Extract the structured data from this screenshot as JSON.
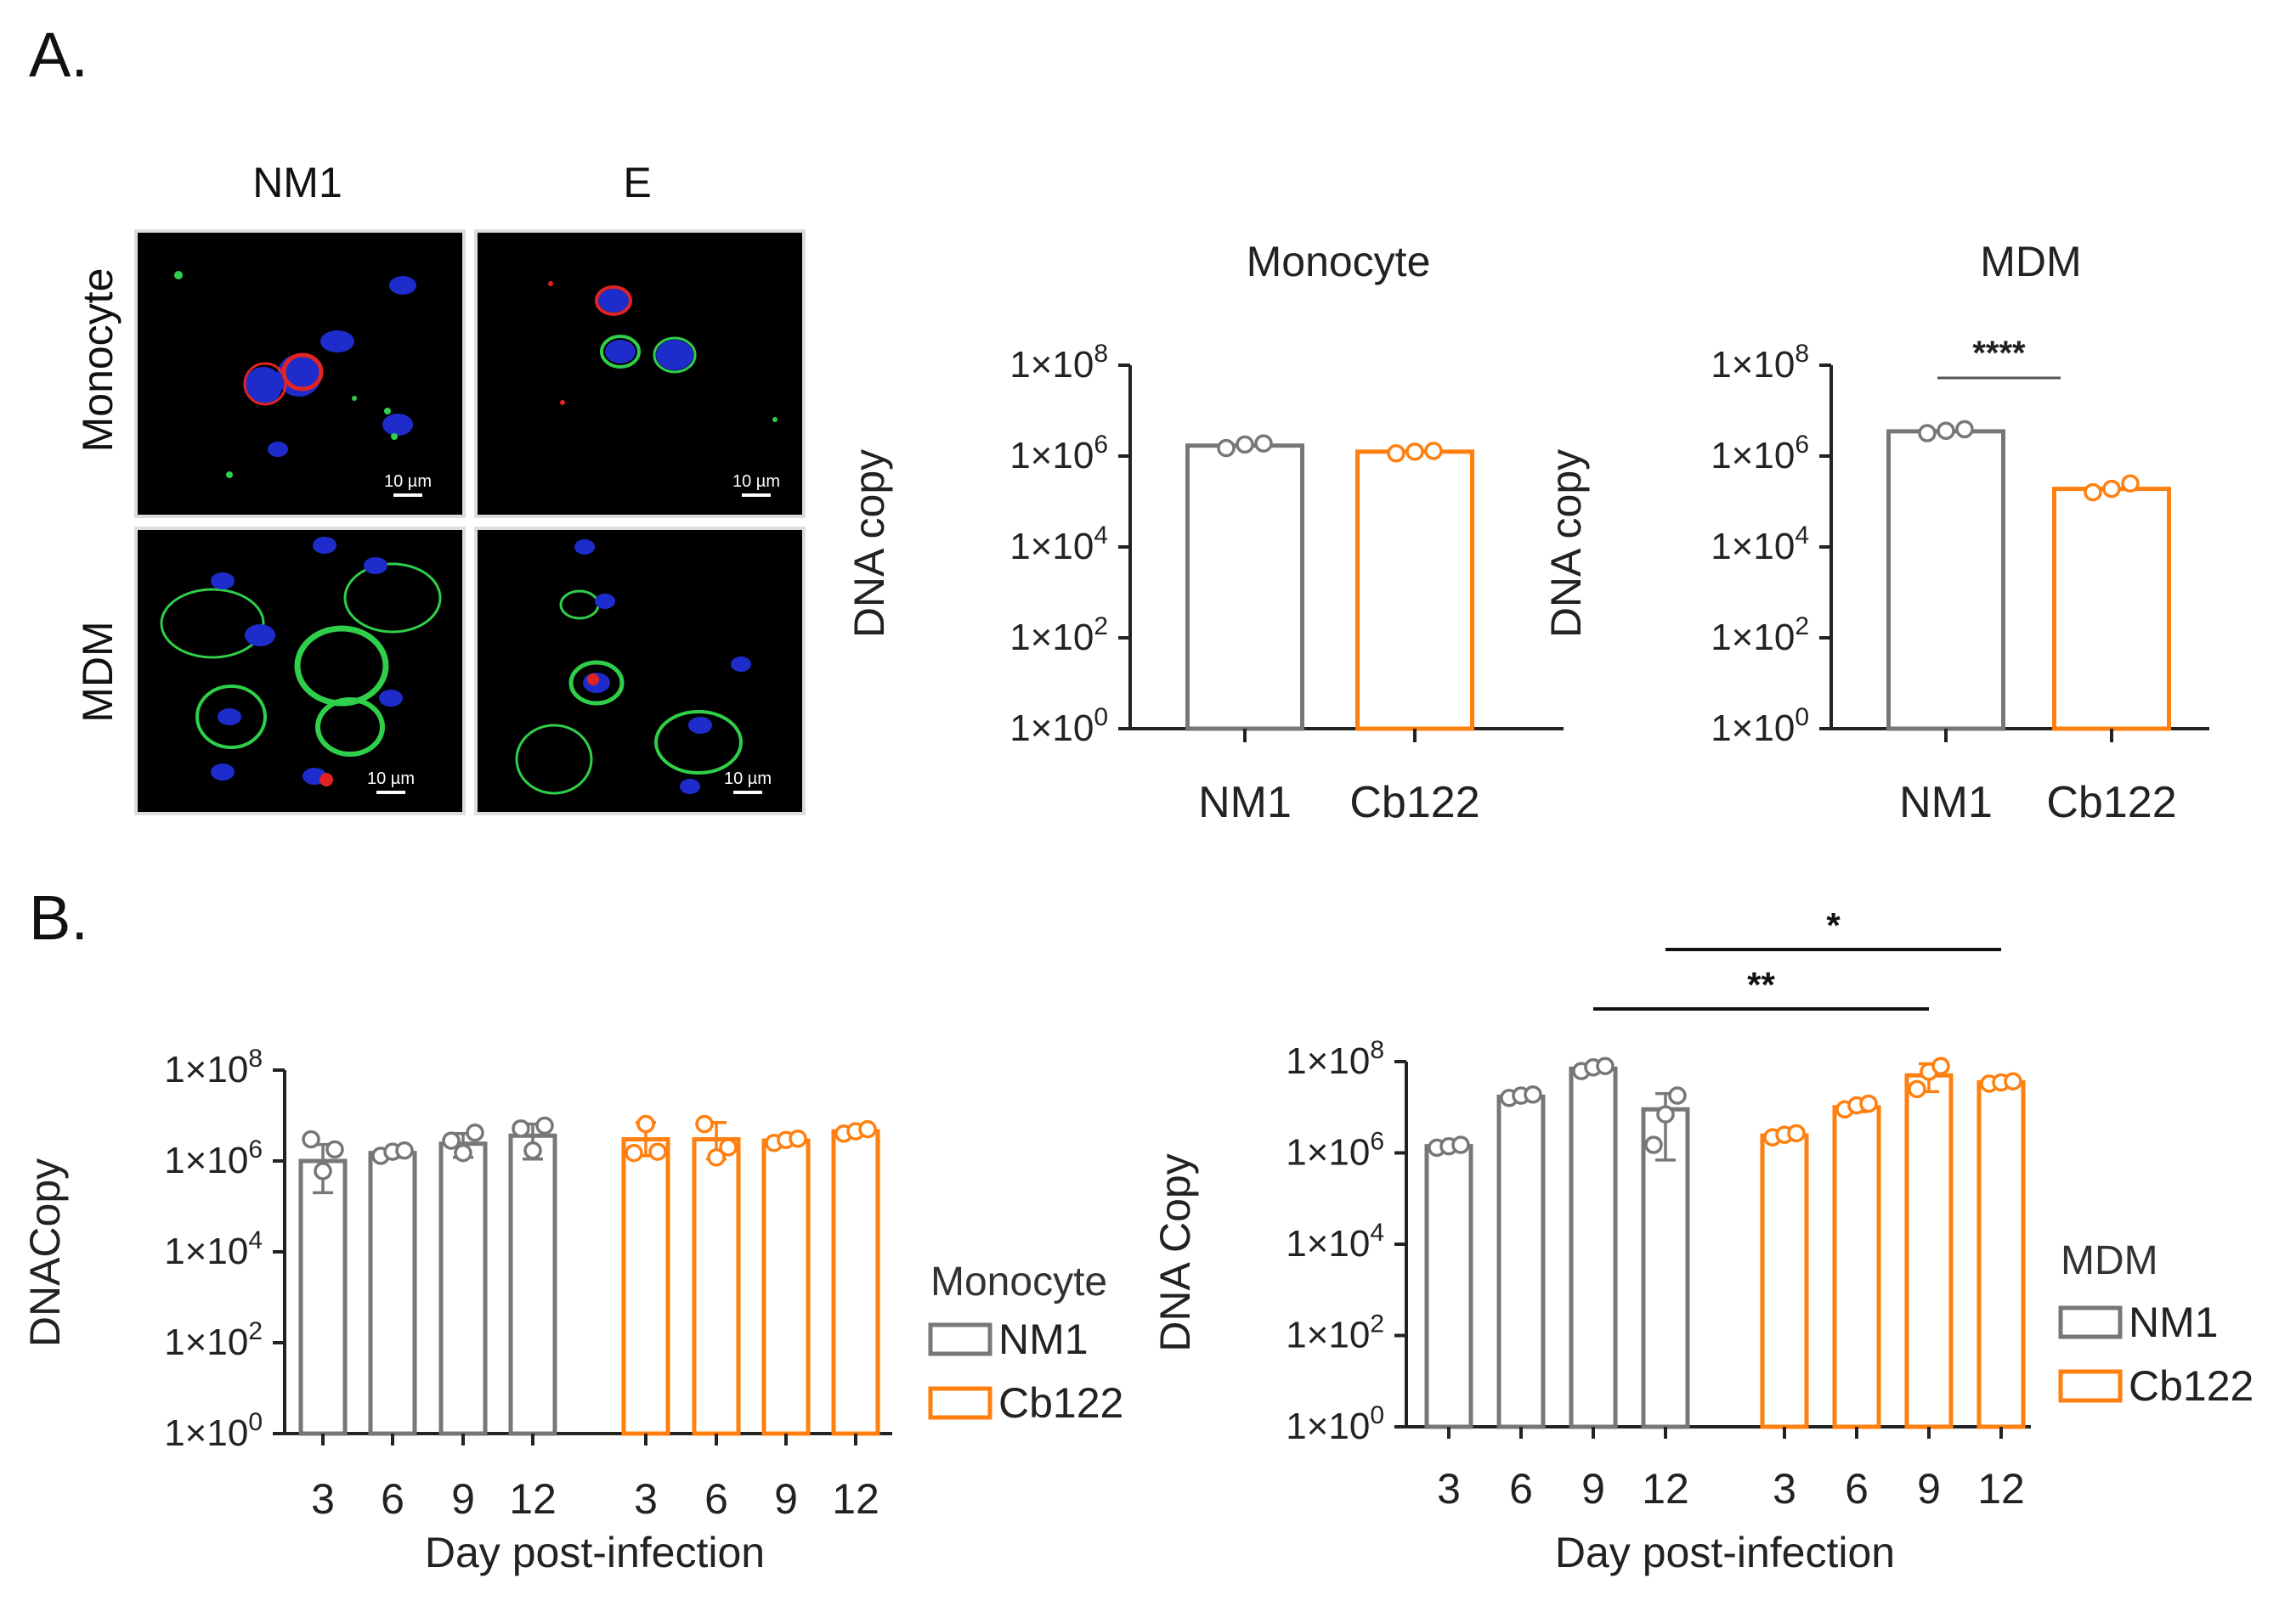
{
  "panel_labels": {
    "a": "A.",
    "b": "B."
  },
  "micrographs": {
    "columns": [
      "NM1",
      "E"
    ],
    "rows": [
      "Monocyte",
      "MDM"
    ],
    "scale_bar_label": "10 µm"
  },
  "colors": {
    "nm1": "#777777",
    "cb122": "#ff7f0f",
    "axis": "#222222",
    "nucleus": "#1e2ccc",
    "membrane": "#2fcf4a",
    "bacteria": "#e02424"
  },
  "y_tick_labels": [
    {
      "base": "1×10",
      "exp": "0"
    },
    {
      "base": "1×10",
      "exp": "2"
    },
    {
      "base": "1×10",
      "exp": "4"
    },
    {
      "base": "1×10",
      "exp": "6"
    },
    {
      "base": "1×10",
      "exp": "8"
    }
  ],
  "chart_data": [
    {
      "id": "a-monocyte",
      "type": "bar",
      "title": "Monocyte",
      "ylabel": "DNA copy",
      "yscale": "log",
      "ylim": [
        1,
        100000000
      ],
      "categories": [
        "NM1",
        "Cb122"
      ],
      "values": [
        1700000,
        1250000
      ],
      "points": [
        [
          1500000,
          1800000,
          1900000
        ],
        [
          1150000,
          1250000,
          1300000
        ]
      ],
      "colors": [
        "#777777",
        "#ff7f0f"
      ]
    },
    {
      "id": "a-mdm",
      "type": "bar",
      "title": "MDM",
      "ylabel": "DNA copy",
      "yscale": "log",
      "ylim": [
        1,
        100000000
      ],
      "categories": [
        "NM1",
        "Cb122"
      ],
      "values": [
        3500000,
        190000
      ],
      "points": [
        [
          3200000,
          3600000,
          3900000
        ],
        [
          160000,
          190000,
          250000
        ]
      ],
      "colors": [
        "#777777",
        "#ff7f0f"
      ],
      "annotations": [
        {
          "text": "****",
          "between": [
            0,
            1
          ]
        }
      ]
    },
    {
      "id": "b-monocyte",
      "type": "bar",
      "ylabel": "DNACopy",
      "xlabel": "Day post-infection",
      "yscale": "log",
      "ylim": [
        1,
        100000000
      ],
      "legend": {
        "title": "Monocyte",
        "entries": [
          "NM1",
          "Cb122"
        ]
      },
      "series": [
        {
          "name": "NM1",
          "categories": [
            "3",
            "6",
            "9",
            "12"
          ],
          "values": [
            1000000,
            1500000,
            2400000,
            3600000
          ],
          "errors": [
            [
              200000,
              2300000
            ],
            [
              1200000,
              1800000
            ],
            [
              1200000,
              4000000
            ],
            [
              1100000,
              6500000
            ]
          ],
          "points": [
            [
              3000000,
              600000,
              1800000
            ],
            [
              1300000,
              1600000,
              1700000
            ],
            [
              2800000,
              1500000,
              4200000
            ],
            [
              5200000,
              1700000,
              6000000
            ]
          ]
        },
        {
          "name": "Cb122",
          "categories": [
            "3",
            "6",
            "9",
            "12"
          ],
          "values": [
            3000000,
            3000000,
            2800000,
            4500000
          ],
          "errors": [
            [
              1300000,
              7000000
            ],
            [
              1100000,
              7000000
            ],
            [
              2300000,
              3400000
            ],
            [
              3700000,
              5600000
            ]
          ],
          "points": [
            [
              1500000,
              6500000,
              1600000
            ],
            [
              6500000,
              1200000,
              2000000
            ],
            [
              2500000,
              2900000,
              3100000
            ],
            [
              4000000,
              4500000,
              5000000
            ]
          ]
        }
      ]
    },
    {
      "id": "b-mdm",
      "type": "bar",
      "ylabel": "DNA Copy",
      "xlabel": "Day post-infection",
      "yscale": "log",
      "ylim": [
        1,
        100000000
      ],
      "legend": {
        "title": "MDM",
        "entries": [
          "NM1",
          "Cb122"
        ]
      },
      "series": [
        {
          "name": "NM1",
          "categories": [
            "3",
            "6",
            "9",
            "12"
          ],
          "values": [
            1400000,
            17000000,
            70000000,
            9000000
          ],
          "errors": [
            [
              1300000,
              1500000
            ],
            [
              15000000,
              19000000
            ],
            [
              60000000,
              85000000
            ],
            [
              700000,
              20000000
            ]
          ],
          "points": [
            [
              1300000,
              1400000,
              1500000
            ],
            [
              16000000,
              18000000,
              19000000
            ],
            [
              62000000,
              75000000,
              80000000
            ],
            [
              1500000,
              7000000,
              18000000
            ]
          ]
        },
        {
          "name": "Cb122",
          "categories": [
            "3",
            "6",
            "9",
            "12"
          ],
          "values": [
            2400000,
            10000000,
            50000000,
            35000000
          ],
          "errors": [
            [
              2000000,
              2800000
            ],
            [
              8000000,
              12500000
            ],
            [
              22000000,
              90000000
            ],
            [
              32000000,
              38000000
            ]
          ],
          "points": [
            [
              2200000,
              2500000,
              2700000
            ],
            [
              9000000,
              11000000,
              12000000
            ],
            [
              25000000,
              60000000,
              80000000
            ],
            [
              33000000,
              35000000,
              37000000
            ]
          ]
        }
      ],
      "annotations": [
        {
          "text": "**",
          "from": "NM1 9",
          "to": "Cb122 9"
        },
        {
          "text": "*",
          "from": "NM1 12",
          "to": "Cb122 12"
        }
      ]
    }
  ]
}
